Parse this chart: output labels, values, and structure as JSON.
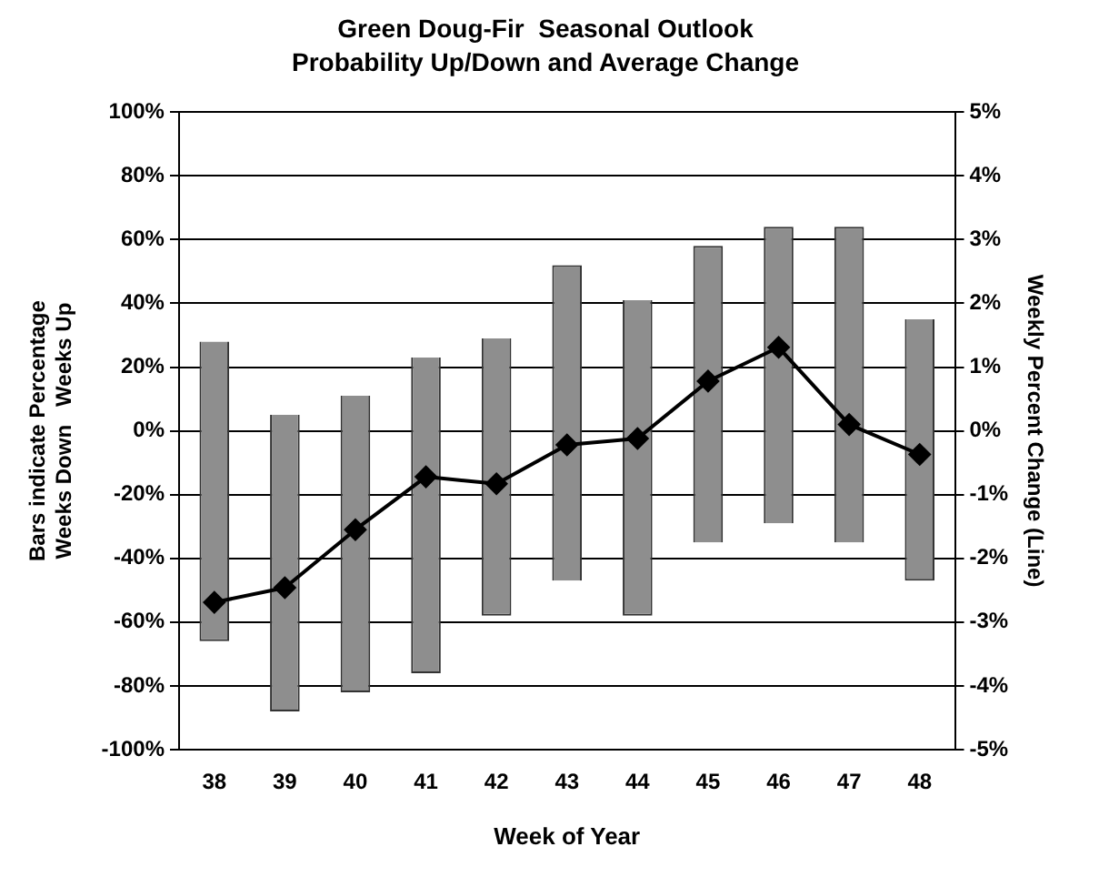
{
  "chart_data": {
    "type": "bar",
    "title": "Green Doug-Fir  Seasonal Outlook",
    "subtitle": "Probability Up/Down and Average Change",
    "xlabel": "Week of Year",
    "ylabel": "Bars indicate Percentage\nWeeks Down   Weeks Up",
    "y2label": "Weekly Percent Change (Line)",
    "categories": [
      "38",
      "39",
      "40",
      "41",
      "42",
      "43",
      "44",
      "45",
      "46",
      "47",
      "48"
    ],
    "series": [
      {
        "color": "#8e8e8e",
        "base": [
          -66,
          -88,
          -82,
          -76,
          -58,
          -47,
          -58,
          -35,
          -29,
          -35,
          -47
        ],
        "values": [
          94,
          93,
          93,
          99,
          87,
          99,
          99,
          93,
          93,
          99,
          82
        ]
      },
      {
        "type": "line",
        "axis": "y2",
        "color": "#000000",
        "marker": "diamond",
        "line_style": "solid",
        "values": [
          -2.69,
          -2.46,
          -1.55,
          -0.72,
          -0.83,
          -0.22,
          -0.12,
          0.78,
          1.31,
          0.1,
          -0.37
        ]
      }
    ],
    "ylim": [
      -100,
      100
    ],
    "yticks": [
      {
        "value": -100,
        "label": "-100%"
      },
      {
        "value": -80,
        "label": "-80%"
      },
      {
        "value": -60,
        "label": "-60%"
      },
      {
        "value": -40,
        "label": "-40%"
      },
      {
        "value": -20,
        "label": "-20%"
      },
      {
        "value": 0,
        "label": "0%"
      },
      {
        "value": 20,
        "label": "20%"
      },
      {
        "value": 40,
        "label": "40%"
      },
      {
        "value": 60,
        "label": "60%"
      },
      {
        "value": 80,
        "label": "80%"
      },
      {
        "value": 100,
        "label": "100%"
      }
    ],
    "y2lim": [
      -5,
      5
    ],
    "y2ticks": [
      {
        "value": -5,
        "label": "-5%"
      },
      {
        "value": -4,
        "label": "-4%"
      },
      {
        "value": -3,
        "label": "-3%"
      },
      {
        "value": -2,
        "label": "-2%"
      },
      {
        "value": -1,
        "label": "-1%"
      },
      {
        "value": 0,
        "label": "0%"
      },
      {
        "value": 1,
        "label": "1%"
      },
      {
        "value": 2,
        "label": "2%"
      },
      {
        "value": 3,
        "label": "3%"
      },
      {
        "value": 4,
        "label": "4%"
      },
      {
        "value": 5,
        "label": "5%"
      }
    ],
    "grid": "y",
    "legend": false
  }
}
